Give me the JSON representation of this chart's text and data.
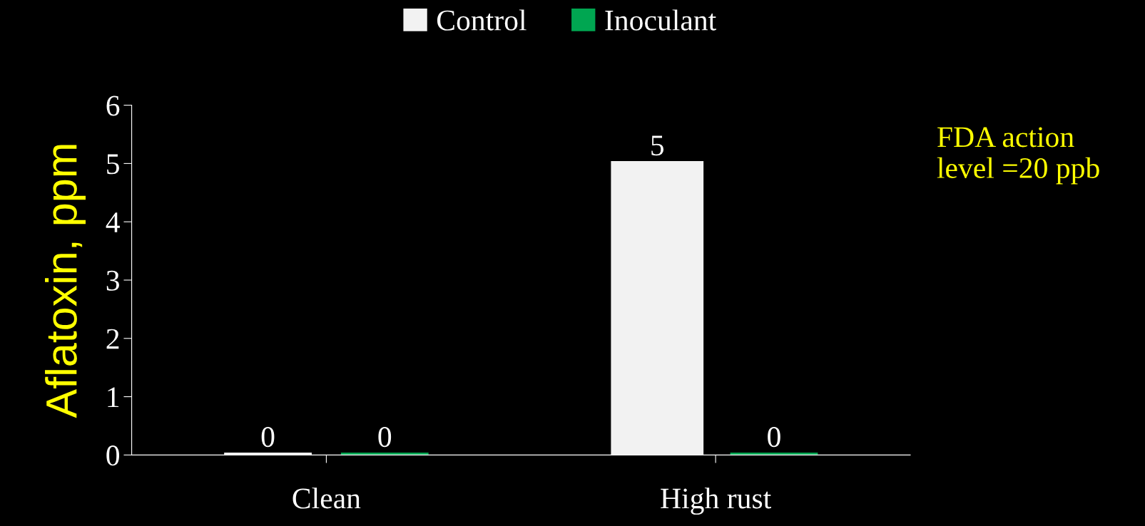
{
  "chart_data": {
    "type": "bar",
    "ylabel": "Aflatoxin, ppm",
    "categories": [
      "Clean",
      "High rust"
    ],
    "series": [
      {
        "name": "Control",
        "color": "#f2f2f2",
        "values": [
          0,
          5
        ]
      },
      {
        "name": "Inoculant",
        "color": "#00a651",
        "values": [
          0,
          0
        ]
      }
    ],
    "ylim": [
      0,
      6
    ],
    "yticks": [
      0,
      1,
      2,
      3,
      4,
      5,
      6
    ],
    "data_labels": true,
    "legend": "top",
    "grid": false,
    "annotations": [
      "FDA action\nlevel =20 ppb"
    ]
  }
}
